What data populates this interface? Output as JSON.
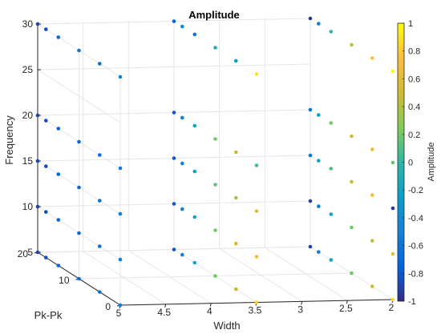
{
  "chart_data": {
    "type": "scatter3d",
    "title": "Amplitude",
    "xlabel": "Width",
    "ylabel": "Pk-Pk",
    "zlabel": "Frequency",
    "colorbar_label": "Amplitude",
    "xlim": [
      2,
      5
    ],
    "ylim": [
      0,
      20
    ],
    "zlim": [
      5,
      30
    ],
    "clim": [
      -1,
      1
    ],
    "colormap": "parula",
    "grid": true,
    "x_ticks": [
      "2",
      "2.5",
      "3",
      "3.5",
      "4",
      "4.5",
      "5"
    ],
    "y_ticks": [
      "0",
      "10",
      "20"
    ],
    "z_ticks": [
      "5",
      "10",
      "15",
      "20",
      "25",
      "30"
    ],
    "c_ticks": [
      "-1",
      "-0.8",
      "-0.6",
      "-0.4",
      "-0.2",
      "0",
      "0.2",
      "0.4",
      "0.6",
      "0.8",
      "1"
    ],
    "points": [
      {
        "x": 5,
        "y": 0,
        "z": 30,
        "c": -0.5
      },
      {
        "x": 5,
        "y": 5,
        "z": 30,
        "c": -0.65
      },
      {
        "x": 5,
        "y": 10,
        "z": 30,
        "c": -0.6
      },
      {
        "x": 5,
        "y": 15,
        "z": 30,
        "c": -0.72
      },
      {
        "x": 5,
        "y": 18,
        "z": 30,
        "c": -0.85
      },
      {
        "x": 5,
        "y": 20,
        "z": 30,
        "c": -0.9
      },
      {
        "x": 5,
        "y": 0,
        "z": 20,
        "c": -0.55
      },
      {
        "x": 5,
        "y": 5,
        "z": 20,
        "c": -0.65
      },
      {
        "x": 5,
        "y": 10,
        "z": 20,
        "c": -0.7
      },
      {
        "x": 5,
        "y": 15,
        "z": 20,
        "c": -0.75
      },
      {
        "x": 5,
        "y": 18,
        "z": 20,
        "c": -0.85
      },
      {
        "x": 5,
        "y": 20,
        "z": 20,
        "c": -0.9
      },
      {
        "x": 5,
        "y": 0,
        "z": 15,
        "c": -0.55
      },
      {
        "x": 5,
        "y": 5,
        "z": 15,
        "c": -0.65
      },
      {
        "x": 5,
        "y": 10,
        "z": 15,
        "c": -0.7
      },
      {
        "x": 5,
        "y": 15,
        "z": 15,
        "c": -0.75
      },
      {
        "x": 5,
        "y": 18,
        "z": 15,
        "c": -0.85
      },
      {
        "x": 5,
        "y": 20,
        "z": 15,
        "c": -0.9
      },
      {
        "x": 5,
        "y": 0,
        "z": 10,
        "c": -0.55
      },
      {
        "x": 5,
        "y": 5,
        "z": 10,
        "c": -0.65
      },
      {
        "x": 5,
        "y": 10,
        "z": 10,
        "c": -0.7
      },
      {
        "x": 5,
        "y": 15,
        "z": 10,
        "c": -0.75
      },
      {
        "x": 5,
        "y": 18,
        "z": 10,
        "c": -0.85
      },
      {
        "x": 5,
        "y": 20,
        "z": 10,
        "c": -0.9
      },
      {
        "x": 5,
        "y": 0,
        "z": 5,
        "c": -0.55
      },
      {
        "x": 5,
        "y": 5,
        "z": 5,
        "c": -0.65
      },
      {
        "x": 5,
        "y": 10,
        "z": 5,
        "c": -0.7
      },
      {
        "x": 5,
        "y": 15,
        "z": 5,
        "c": -0.75
      },
      {
        "x": 5,
        "y": 18,
        "z": 5,
        "c": -0.85
      },
      {
        "x": 5,
        "y": 20,
        "z": 5,
        "c": -0.9
      },
      {
        "x": 3.5,
        "y": 0,
        "z": 30,
        "c": 0.9
      },
      {
        "x": 3.5,
        "y": 5,
        "z": 30,
        "c": -0.3
      },
      {
        "x": 3.5,
        "y": 10,
        "z": 30,
        "c": -0.1
      },
      {
        "x": 3.5,
        "y": 15,
        "z": 30,
        "c": -0.6
      },
      {
        "x": 3.5,
        "y": 18,
        "z": 30,
        "c": -0.4
      },
      {
        "x": 3.5,
        "y": 20,
        "z": 30,
        "c": -0.75
      },
      {
        "x": 3.5,
        "y": 0,
        "z": 20,
        "c": 0.05
      },
      {
        "x": 3.5,
        "y": 5,
        "z": 20,
        "c": 0.45
      },
      {
        "x": 3.5,
        "y": 10,
        "z": 20,
        "c": 0.2
      },
      {
        "x": 3.5,
        "y": 15,
        "z": 20,
        "c": -0.2
      },
      {
        "x": 3.5,
        "y": 18,
        "z": 20,
        "c": -0.5
      },
      {
        "x": 3.5,
        "y": 20,
        "z": 20,
        "c": -0.8
      },
      {
        "x": 3.5,
        "y": 0,
        "z": 15,
        "c": 0.6
      },
      {
        "x": 3.5,
        "y": 5,
        "z": 15,
        "c": 0.35
      },
      {
        "x": 3.5,
        "y": 10,
        "z": 15,
        "c": 0.15
      },
      {
        "x": 3.5,
        "y": 15,
        "z": 15,
        "c": -0.2
      },
      {
        "x": 3.5,
        "y": 18,
        "z": 15,
        "c": -0.5
      },
      {
        "x": 3.5,
        "y": 20,
        "z": 15,
        "c": -0.8
      },
      {
        "x": 3.5,
        "y": 0,
        "z": 10,
        "c": 0.7
      },
      {
        "x": 3.5,
        "y": 5,
        "z": 10,
        "c": 0.5
      },
      {
        "x": 3.5,
        "y": 10,
        "z": 10,
        "c": 0.2
      },
      {
        "x": 3.5,
        "y": 15,
        "z": 10,
        "c": -0.2
      },
      {
        "x": 3.5,
        "y": 18,
        "z": 10,
        "c": -0.5
      },
      {
        "x": 3.5,
        "y": 20,
        "z": 10,
        "c": -0.8
      },
      {
        "x": 3.5,
        "y": 0,
        "z": 5,
        "c": 0.8
      },
      {
        "x": 3.5,
        "y": 5,
        "z": 5,
        "c": 0.45
      },
      {
        "x": 3.5,
        "y": 10,
        "z": 5,
        "c": 0.2
      },
      {
        "x": 3.5,
        "y": 15,
        "z": 5,
        "c": -0.2
      },
      {
        "x": 3.5,
        "y": 18,
        "z": 5,
        "c": -0.5
      },
      {
        "x": 3.5,
        "y": 20,
        "z": 5,
        "c": -0.8
      },
      {
        "x": 2,
        "y": 0,
        "z": 30,
        "c": 1.0
      },
      {
        "x": 2,
        "y": 5,
        "z": 30,
        "c": 0.75
      },
      {
        "x": 2,
        "y": 10,
        "z": 30,
        "c": 0.45
      },
      {
        "x": 2,
        "y": 15,
        "z": 30,
        "c": 0.0
      },
      {
        "x": 2,
        "y": 18,
        "z": 30,
        "c": -0.5
      },
      {
        "x": 2,
        "y": 20,
        "z": 30,
        "c": -0.95
      },
      {
        "x": 2,
        "y": 0,
        "z": 20,
        "c": 0.15
      },
      {
        "x": 2,
        "y": 5,
        "z": 20,
        "c": 0.65
      },
      {
        "x": 2,
        "y": 10,
        "z": 20,
        "c": 0.5
      },
      {
        "x": 2,
        "y": 15,
        "z": 20,
        "c": 0.2
      },
      {
        "x": 2,
        "y": 18,
        "z": 20,
        "c": -0.25
      },
      {
        "x": 2,
        "y": 20,
        "z": 20,
        "c": -0.6
      },
      {
        "x": 2,
        "y": 0,
        "z": 15,
        "c": -0.95
      },
      {
        "x": 2,
        "y": 5,
        "z": 15,
        "c": 0.7
      },
      {
        "x": 2,
        "y": 10,
        "z": 15,
        "c": 0.45
      },
      {
        "x": 2,
        "y": 15,
        "z": 15,
        "c": 0.1
      },
      {
        "x": 2,
        "y": 18,
        "z": 15,
        "c": -0.2
      },
      {
        "x": 2,
        "y": 20,
        "z": 15,
        "c": -0.6
      },
      {
        "x": 2,
        "y": 0,
        "z": 10,
        "c": 0.6
      },
      {
        "x": 2,
        "y": 5,
        "z": 10,
        "c": 0.45
      },
      {
        "x": 2,
        "y": 10,
        "z": 10,
        "c": 0.2
      },
      {
        "x": 2,
        "y": 15,
        "z": 10,
        "c": -0.2
      },
      {
        "x": 2,
        "y": 18,
        "z": 10,
        "c": -0.55
      },
      {
        "x": 2,
        "y": 20,
        "z": 10,
        "c": -0.9
      },
      {
        "x": 2,
        "y": 0,
        "z": 5,
        "c": 0.85
      },
      {
        "x": 2,
        "y": 5,
        "z": 5,
        "c": 0.5
      },
      {
        "x": 2,
        "y": 10,
        "z": 5,
        "c": 0.2
      },
      {
        "x": 2,
        "y": 15,
        "z": 5,
        "c": -0.2
      },
      {
        "x": 2,
        "y": 18,
        "z": 5,
        "c": -0.55
      },
      {
        "x": 2,
        "y": 20,
        "z": 5,
        "c": -0.9
      }
    ]
  }
}
